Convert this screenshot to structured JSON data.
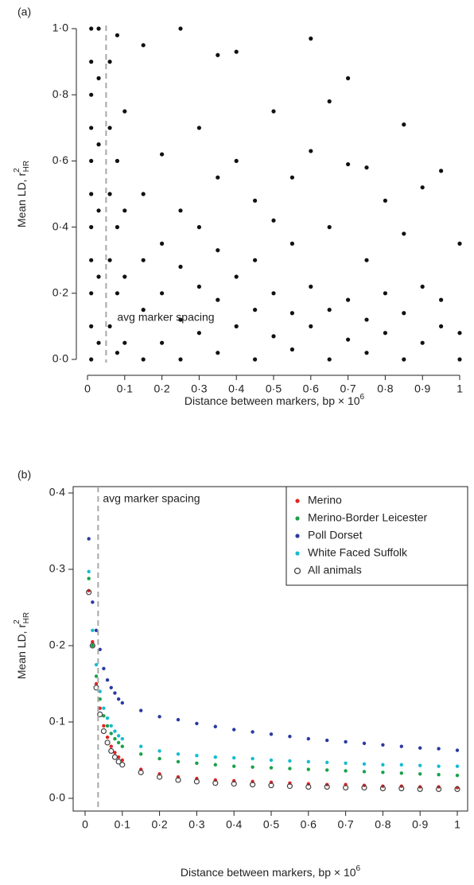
{
  "chart_data": [
    {
      "type": "scatter",
      "panel": "(a)",
      "xlabel": "Distance between markers, bp × 10",
      "xlabel_sup": "6",
      "ylabel": "Mean LD, r",
      "ylabel_sup": "2",
      "ylabel_sub": "HR",
      "annotation": {
        "text": "avg marker spacing",
        "x": 0.05
      },
      "color": "#111111",
      "xlim": [
        0,
        1
      ],
      "ylim": [
        0,
        1
      ],
      "xticks": [
        0,
        {
          "value": 0.1,
          "label": "0·1"
        },
        {
          "value": 0.2,
          "label": "0·2"
        },
        {
          "value": 0.3,
          "label": "0·3"
        },
        {
          "value": 0.4,
          "label": "0·4"
        },
        {
          "value": 0.5,
          "label": "0·5"
        },
        {
          "value": 0.6,
          "label": "0·6"
        },
        {
          "value": 0.7,
          "label": "0·7"
        },
        {
          "value": 0.8,
          "label": "0·8"
        },
        {
          "value": 0.9,
          "label": "0·9"
        },
        1
      ],
      "yticks": [
        {
          "value": 0,
          "label": "0·0"
        },
        {
          "value": 0.2,
          "label": "0·2"
        },
        {
          "value": 0.4,
          "label": "0·4"
        },
        {
          "value": 0.6,
          "label": "0·6"
        },
        {
          "value": 0.8,
          "label": "0·8"
        },
        {
          "value": 1,
          "label": "1·0"
        }
      ],
      "x": [
        0.01,
        0.01,
        0.01,
        0.01,
        0.01,
        0.01,
        0.01,
        0.01,
        0.01,
        0.01,
        0.01,
        0.03,
        0.03,
        0.03,
        0.03,
        0.03,
        0.03,
        0.06,
        0.06,
        0.06,
        0.06,
        0.06,
        0.08,
        0.08,
        0.08,
        0.08,
        0.08,
        0.1,
        0.1,
        0.1,
        0.1,
        0.15,
        0.15,
        0.15,
        0.15,
        0.15,
        0.2,
        0.2,
        0.2,
        0.2,
        0.25,
        0.25,
        0.25,
        0.25,
        0.25,
        0.3,
        0.3,
        0.3,
        0.3,
        0.35,
        0.35,
        0.35,
        0.35,
        0.35,
        0.4,
        0.4,
        0.4,
        0.4,
        0.45,
        0.45,
        0.45,
        0.45,
        0.5,
        0.5,
        0.5,
        0.5,
        0.55,
        0.55,
        0.55,
        0.55,
        0.6,
        0.6,
        0.6,
        0.6,
        0.65,
        0.65,
        0.65,
        0.65,
        0.7,
        0.7,
        0.7,
        0.7,
        0.75,
        0.75,
        0.75,
        0.75,
        0.8,
        0.8,
        0.8,
        0.85,
        0.85,
        0.85,
        0.85,
        0.9,
        0.9,
        0.9,
        0.95,
        0.95,
        0.95,
        1,
        1,
        1
      ],
      "y": [
        0,
        0.1,
        0.2,
        0.3,
        0.4,
        0.5,
        0.6,
        0.7,
        0.8,
        0.9,
        1.0,
        0.05,
        0.25,
        0.45,
        0.65,
        0.85,
        1.0,
        0.1,
        0.3,
        0.5,
        0.7,
        0.9,
        0.02,
        0.2,
        0.4,
        0.6,
        0.98,
        0.05,
        0.25,
        0.45,
        0.75,
        0.0,
        0.15,
        0.3,
        0.5,
        0.95,
        0.05,
        0.2,
        0.35,
        0.62,
        0.0,
        0.12,
        0.28,
        0.45,
        1.0,
        0.08,
        0.22,
        0.4,
        0.7,
        0.02,
        0.18,
        0.33,
        0.55,
        0.92,
        0.1,
        0.25,
        0.6,
        0.93,
        0.0,
        0.15,
        0.3,
        0.48,
        0.07,
        0.2,
        0.42,
        0.75,
        0.03,
        0.14,
        0.35,
        0.55,
        0.1,
        0.22,
        0.63,
        0.97,
        0.0,
        0.15,
        0.4,
        0.78,
        0.06,
        0.18,
        0.59,
        0.85,
        0.02,
        0.12,
        0.3,
        0.58,
        0.08,
        0.2,
        0.48,
        0.0,
        0.14,
        0.38,
        0.71,
        0.05,
        0.22,
        0.52,
        0.1,
        0.18,
        0.57,
        0.0,
        0.08,
        0.35
      ]
    },
    {
      "type": "scatter",
      "panel": "(b)",
      "xlabel": "Distance between markers, bp × 10",
      "xlabel_sup": "6",
      "ylabel": "Mean LD, r",
      "ylabel_sup": "2",
      "ylabel_sub": "HR",
      "annotation": {
        "text": "avg marker spacing",
        "x": 0.035
      },
      "legend": "upper right",
      "xlim": [
        0,
        1
      ],
      "ylim": [
        0,
        0.4
      ],
      "xticks": [
        0,
        {
          "value": 0.1,
          "label": "0·1"
        },
        {
          "value": 0.2,
          "label": "0·2"
        },
        {
          "value": 0.3,
          "label": "0·3"
        },
        {
          "value": 0.4,
          "label": "0·4"
        },
        {
          "value": 0.5,
          "label": "0·5"
        },
        {
          "value": 0.6,
          "label": "0·6"
        },
        {
          "value": 0.7,
          "label": "0·7"
        },
        {
          "value": 0.8,
          "label": "0·8"
        },
        {
          "value": 0.9,
          "label": "0·9"
        },
        1
      ],
      "yticks": [
        {
          "value": 0,
          "label": "0·0"
        },
        {
          "value": 0.1,
          "label": "0·1"
        },
        {
          "value": 0.2,
          "label": "0·2"
        },
        {
          "value": 0.3,
          "label": "0·3"
        },
        {
          "value": 0.4,
          "label": "0·4"
        }
      ],
      "x": [
        0.01,
        0.02,
        0.03,
        0.04,
        0.05,
        0.06,
        0.07,
        0.08,
        0.09,
        0.1,
        0.15,
        0.2,
        0.25,
        0.3,
        0.35,
        0.4,
        0.45,
        0.5,
        0.55,
        0.6,
        0.65,
        0.7,
        0.75,
        0.8,
        0.85,
        0.9,
        0.95,
        1.0
      ],
      "series": [
        {
          "name": "Merino",
          "color": "#e02424",
          "filled": true,
          "values": [
            0.272,
            0.205,
            0.15,
            0.118,
            0.095,
            0.08,
            0.068,
            0.06,
            0.054,
            0.05,
            0.038,
            0.032,
            0.028,
            0.026,
            0.024,
            0.023,
            0.022,
            0.021,
            0.02,
            0.019,
            0.018,
            0.018,
            0.017,
            0.016,
            0.016,
            0.015,
            0.015,
            0.014
          ]
        },
        {
          "name": "Merino-Border Leicester",
          "color": "#1aa14a",
          "filled": true,
          "values": [
            0.288,
            0.2,
            0.16,
            0.13,
            0.108,
            0.095,
            0.085,
            0.078,
            0.073,
            0.068,
            0.058,
            0.052,
            0.048,
            0.046,
            0.044,
            0.042,
            0.041,
            0.04,
            0.039,
            0.038,
            0.037,
            0.036,
            0.035,
            0.034,
            0.033,
            0.032,
            0.031,
            0.03
          ]
        },
        {
          "name": "Poll Dorset",
          "color": "#2b3aa0",
          "filled": true,
          "values": [
            0.34,
            0.257,
            0.22,
            0.195,
            0.17,
            0.155,
            0.145,
            0.138,
            0.13,
            0.125,
            0.115,
            0.107,
            0.103,
            0.098,
            0.094,
            0.09,
            0.087,
            0.084,
            0.081,
            0.078,
            0.076,
            0.074,
            0.072,
            0.07,
            0.068,
            0.066,
            0.065,
            0.063
          ]
        },
        {
          "name": "White Faced Suffolk",
          "color": "#16bcd0",
          "filled": true,
          "values": [
            0.297,
            0.22,
            0.175,
            0.14,
            0.118,
            0.105,
            0.095,
            0.088,
            0.082,
            0.078,
            0.068,
            0.062,
            0.058,
            0.056,
            0.054,
            0.053,
            0.052,
            0.05,
            0.049,
            0.048,
            0.047,
            0.046,
            0.045,
            0.044,
            0.044,
            0.043,
            0.042,
            0.042
          ]
        },
        {
          "name": "All animals",
          "color": "#444444",
          "filled": false,
          "values": [
            0.27,
            0.2,
            0.145,
            0.11,
            0.088,
            0.073,
            0.062,
            0.054,
            0.048,
            0.044,
            0.034,
            0.028,
            0.024,
            0.022,
            0.02,
            0.019,
            0.018,
            0.017,
            0.016,
            0.015,
            0.015,
            0.014,
            0.014,
            0.013,
            0.013,
            0.012,
            0.012,
            0.012
          ]
        }
      ]
    }
  ]
}
